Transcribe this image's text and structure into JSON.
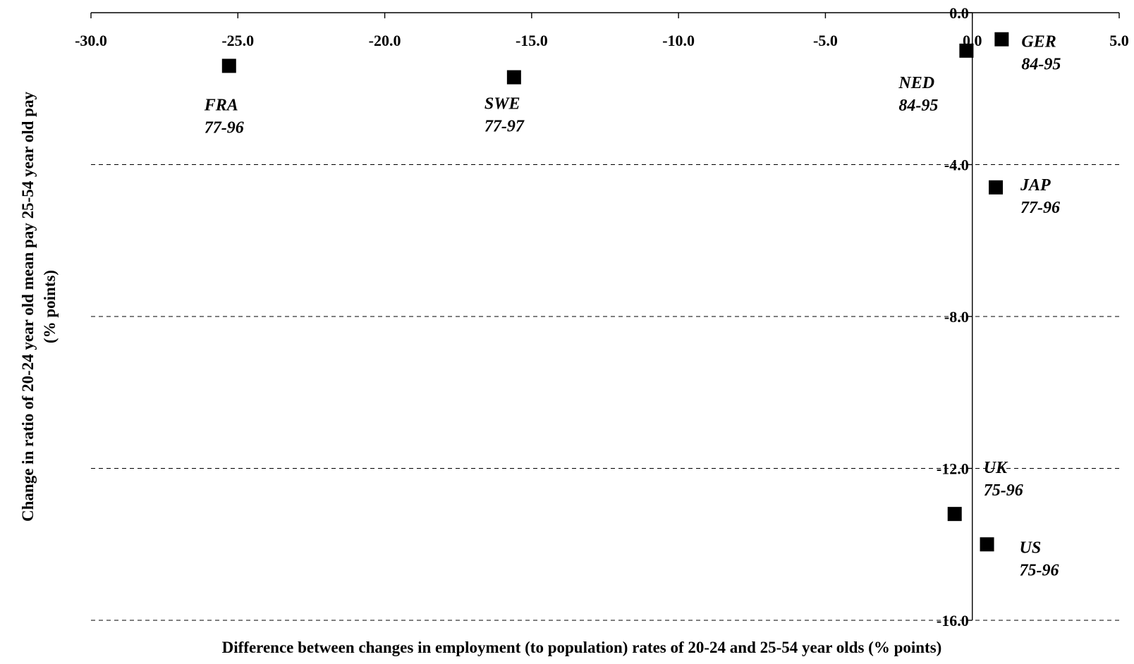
{
  "chart_data": {
    "type": "scatter",
    "title": "",
    "xlabel": "Difference between changes in employment (to population) rates of 20-24 and 25-54 year olds (% points)",
    "ylabel": "Change in ratio of 20-24 year old mean pay 25-54 year old pay",
    "ylabel_line2": "(% points)",
    "xlim": [
      -30,
      5
    ],
    "ylim": [
      -16,
      0
    ],
    "x_ticks": [
      -30,
      -25,
      -20,
      -15,
      -10,
      -5,
      0,
      5
    ],
    "x_tick_labels": [
      "-30.0",
      "-25.0",
      "-20.0",
      "-15.0",
      "-10.0",
      "-5.0",
      "0.0",
      "5.0"
    ],
    "y_ticks": [
      0,
      -4,
      -8,
      -12,
      -16
    ],
    "y_tick_labels": [
      "0.0",
      "-4.0",
      "-8.0",
      "-12.0",
      "-16.0"
    ],
    "gridlines": "horizontal dashed",
    "x_axis_position": "top",
    "legend": "none",
    "marker_color": "#000000",
    "points": [
      {
        "country": "FRA",
        "period": "77-96",
        "x": -25.3,
        "y": -1.4
      },
      {
        "country": "SWE",
        "period": "77-97",
        "x": -15.6,
        "y": -1.7
      },
      {
        "country": "NED",
        "period": "84-95",
        "x": -0.2,
        "y": -1.0
      },
      {
        "country": "GER",
        "period": "84-95",
        "x": 1.0,
        "y": -0.7
      },
      {
        "country": "JAP",
        "period": "77-96",
        "x": 0.8,
        "y": -4.6
      },
      {
        "country": "UK",
        "period": "75-96",
        "x": -0.6,
        "y": -13.2
      },
      {
        "country": "US",
        "period": "75-96",
        "x": 0.5,
        "y": -14.0
      }
    ]
  }
}
